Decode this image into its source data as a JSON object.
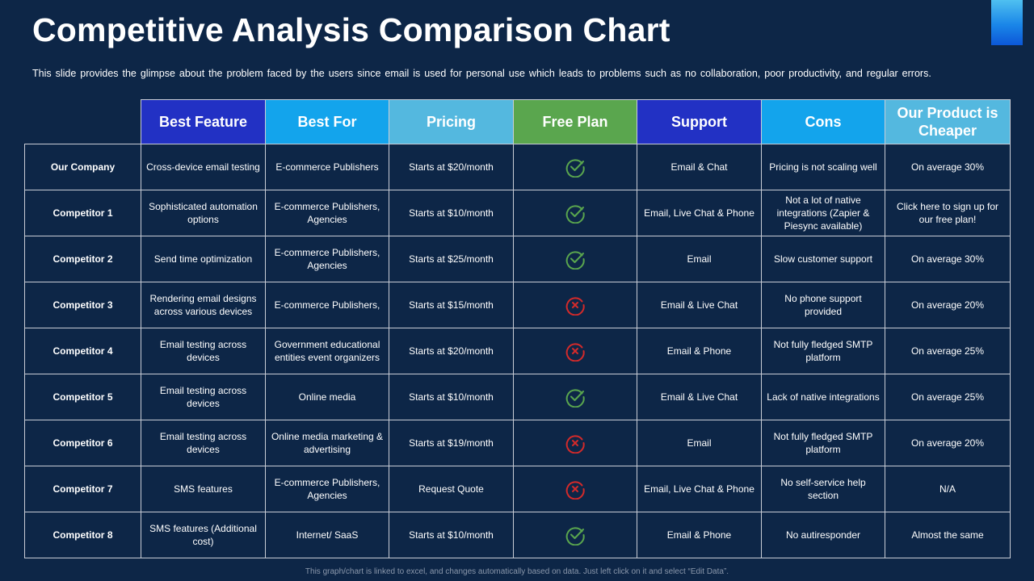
{
  "title": "Competitive Analysis Comparison Chart",
  "subtitle": "This slide provides  the glimpse about the problem faced by the users since email is used for personal  use which leads to problems  such as no collaboration,  poor productivity,  and regular  errors.",
  "colors": {
    "background": "#0d2647",
    "best_feature": "#2231c4",
    "best_for": "#13a4ec",
    "pricing": "#54b8df",
    "free_plan": "#5aa64e",
    "support": "#2231c4",
    "cons": "#13a4ec",
    "cheaper": "#54b8df",
    "check": "#5aa64e",
    "cross": "#d42a2a"
  },
  "table": {
    "headers": [
      "Best Feature",
      "Best For",
      "Pricing",
      "Free Plan",
      "Support",
      "Cons",
      "Our Product is Cheaper"
    ],
    "rows": [
      {
        "name": "Our Company",
        "feature": "Cross-device email testing",
        "best_for": "E-commerce  Publishers",
        "pricing": "Starts at $20/month",
        "free_plan": "check-icon",
        "support": "Email & Chat",
        "cons": "Pricing is not scaling well",
        "cheaper": "On average 30%"
      },
      {
        "name": "Competitor 1",
        "feature": "Sophisticated automation options",
        "best_for": "E-commerce  Publishers, Agencies",
        "pricing": "Starts at $10/month",
        "free_plan": "check-icon",
        "support": "Email, Live Chat & Phone",
        "cons": "Not a lot of native integrations (Zapier & Piesync available)",
        "cheaper": "Click here to sign up for our free plan!"
      },
      {
        "name": "Competitor 2",
        "feature": "Send time optimization",
        "best_for": "E-commerce  Publishers, Agencies",
        "pricing": "Starts at $25/month",
        "free_plan": "check-icon",
        "support": "Email",
        "cons": "Slow customer support",
        "cheaper": "On average 30%"
      },
      {
        "name": "Competitor 3",
        "feature": "Rendering email designs across various devices",
        "best_for": "E-commerce  Publishers,",
        "pricing": "Starts at $15/month",
        "free_plan": "cross-icon",
        "support": "Email & Live Chat",
        "cons": "No phone support provided",
        "cheaper": "On average 20%"
      },
      {
        "name": "Competitor 4",
        "feature": "Email testing across devices",
        "best_for": "Government educational entities event organizers",
        "pricing": "Starts at $20/month",
        "free_plan": "cross-icon",
        "support": "Email & Phone",
        "cons": "Not fully fledged SMTP platform",
        "cheaper": "On average 25%"
      },
      {
        "name": "Competitor 5",
        "feature": "Email testing across devices",
        "best_for": "Online media",
        "pricing": "Starts at $10/month",
        "free_plan": "check-icon",
        "support": "Email & Live Chat",
        "cons": "Lack of native integrations",
        "cheaper": "On average 25%"
      },
      {
        "name": "Competitor 6",
        "feature": "Email testing across devices",
        "best_for": "Online media marketing & advertising",
        "pricing": "Starts at $19/month",
        "free_plan": "cross-icon",
        "support": "Email",
        "cons": "Not fully fledged SMTP platform",
        "cheaper": "On average 20%"
      },
      {
        "name": "Competitor 7",
        "feature": "SMS features",
        "best_for": "E-commerce  Publishers, Agencies",
        "pricing": "Request Quote",
        "free_plan": "cross-icon",
        "support": "Email, Live Chat & Phone",
        "cons": "No self-service help section",
        "cheaper": "N/A"
      },
      {
        "name": "Competitor 8",
        "feature": "SMS features (Additional cost)",
        "best_for": "Internet/ SaaS",
        "pricing": "Starts at $10/month",
        "free_plan": "check-icon",
        "support": "Email & Phone",
        "cons": "No autiresponder",
        "cheaper": "Almost the same"
      }
    ]
  },
  "footer": "This graph/chart is linked to excel, and changes automatically based on data. Just left click on it and select “Edit Data”."
}
